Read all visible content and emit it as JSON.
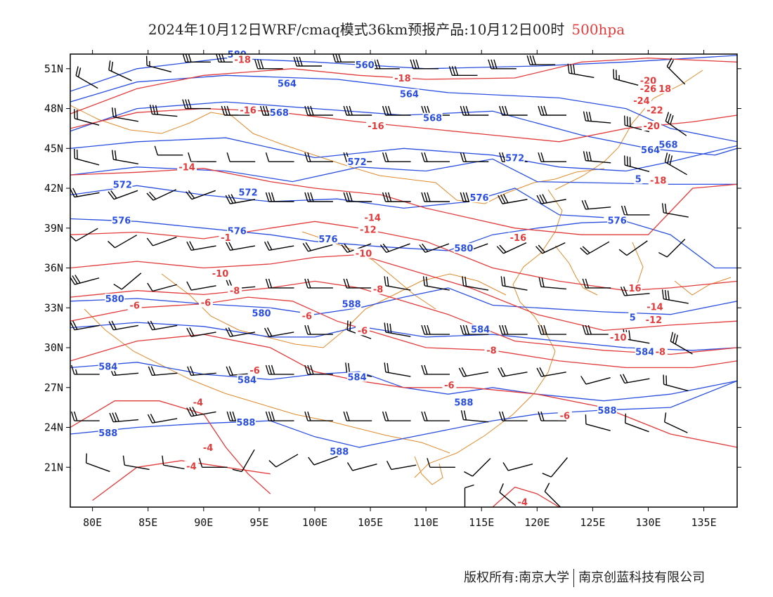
{
  "title": {
    "main": "2024年10月12日WRF/cmaq模式36km预报产品:10月12日00时",
    "level": "500hpa"
  },
  "colors": {
    "height_contour": "#2a4fe0",
    "temp_contour": "#e23b3b",
    "coastline": "#e08a2c",
    "wind_barb": "#000000",
    "frame": "#000000"
  },
  "axes": {
    "lat_labels": [
      "51N",
      "48N",
      "45N",
      "42N",
      "39N",
      "36N",
      "33N",
      "30N",
      "27N",
      "24N",
      "21N"
    ],
    "lon_labels": [
      "80E",
      "85E",
      "90E",
      "95E",
      "100E",
      "105E",
      "110E",
      "115E",
      "120E",
      "125E",
      "130E",
      "135E"
    ],
    "lon_range": [
      78,
      138
    ],
    "lat_range": [
      18,
      52.1
    ]
  },
  "height_labels": [
    {
      "lon": 93.0,
      "lat": 52.0,
      "text": "580"
    },
    {
      "lon": 104.5,
      "lat": 51.2,
      "text": "560"
    },
    {
      "lon": 97.5,
      "lat": 49.8,
      "text": "564"
    },
    {
      "lon": 108.5,
      "lat": 49.0,
      "text": "564"
    },
    {
      "lon": 96.8,
      "lat": 47.6,
      "text": "568"
    },
    {
      "lon": 110.6,
      "lat": 47.2,
      "text": "568"
    },
    {
      "lon": 130.2,
      "lat": 44.8,
      "text": "564"
    },
    {
      "lon": 131.8,
      "lat": 45.2,
      "text": "568"
    },
    {
      "lon": 103.8,
      "lat": 43.9,
      "text": "572"
    },
    {
      "lon": 118.0,
      "lat": 44.2,
      "text": "572"
    },
    {
      "lon": 82.7,
      "lat": 42.2,
      "text": "572"
    },
    {
      "lon": 94.0,
      "lat": 41.6,
      "text": "572"
    },
    {
      "lon": 114.8,
      "lat": 41.2,
      "text": "576"
    },
    {
      "lon": 82.6,
      "lat": 39.5,
      "text": "576"
    },
    {
      "lon": 93.0,
      "lat": 38.7,
      "text": "576"
    },
    {
      "lon": 101.2,
      "lat": 38.1,
      "text": "576"
    },
    {
      "lon": 113.4,
      "lat": 37.4,
      "text": "580"
    },
    {
      "lon": 127.2,
      "lat": 39.5,
      "text": "576"
    },
    {
      "lon": 82.0,
      "lat": 33.6,
      "text": "580"
    },
    {
      "lon": 95.2,
      "lat": 32.5,
      "text": "580"
    },
    {
      "lon": 103.3,
      "lat": 33.2,
      "text": "588"
    },
    {
      "lon": 114.9,
      "lat": 31.3,
      "text": "584"
    },
    {
      "lon": 128.6,
      "lat": 32.2,
      "text": "5"
    },
    {
      "lon": 129.7,
      "lat": 29.6,
      "text": "584"
    },
    {
      "lon": 81.4,
      "lat": 28.5,
      "text": "584"
    },
    {
      "lon": 93.9,
      "lat": 27.5,
      "text": "584"
    },
    {
      "lon": 103.8,
      "lat": 27.7,
      "text": "584"
    },
    {
      "lon": 113.4,
      "lat": 25.8,
      "text": "588"
    },
    {
      "lon": 126.3,
      "lat": 25.2,
      "text": "588"
    },
    {
      "lon": 81.4,
      "lat": 23.5,
      "text": "588"
    },
    {
      "lon": 93.8,
      "lat": 24.3,
      "text": "588"
    },
    {
      "lon": 102.2,
      "lat": 22.1,
      "text": "588"
    },
    {
      "lon": 129.1,
      "lat": 42.6,
      "text": "5"
    }
  ],
  "temp_labels": [
    {
      "lon": 93.5,
      "lat": 51.6,
      "text": "-18"
    },
    {
      "lon": 107.9,
      "lat": 50.2,
      "text": "-18"
    },
    {
      "lon": 94.0,
      "lat": 47.8,
      "text": "-16"
    },
    {
      "lon": 105.5,
      "lat": 46.6,
      "text": "-16"
    },
    {
      "lon": 130.0,
      "lat": 50.0,
      "text": "-20"
    },
    {
      "lon": 130.0,
      "lat": 49.4,
      "text": "-26"
    },
    {
      "lon": 131.5,
      "lat": 49.4,
      "text": "18"
    },
    {
      "lon": 129.4,
      "lat": 48.5,
      "text": "-24"
    },
    {
      "lon": 130.6,
      "lat": 47.8,
      "text": "-22"
    },
    {
      "lon": 130.3,
      "lat": 46.6,
      "text": "-20"
    },
    {
      "lon": 130.9,
      "lat": 42.5,
      "text": "-18"
    },
    {
      "lon": 88.5,
      "lat": 43.5,
      "text": "-14"
    },
    {
      "lon": 105.2,
      "lat": 39.7,
      "text": "-14"
    },
    {
      "lon": 104.8,
      "lat": 38.8,
      "text": "-12"
    },
    {
      "lon": 92.0,
      "lat": 38.2,
      "text": "-1"
    },
    {
      "lon": 104.4,
      "lat": 37.0,
      "text": "-10"
    },
    {
      "lon": 118.3,
      "lat": 38.2,
      "text": "-16"
    },
    {
      "lon": 91.5,
      "lat": 35.5,
      "text": "-10"
    },
    {
      "lon": 128.8,
      "lat": 34.4,
      "text": "16"
    },
    {
      "lon": 130.6,
      "lat": 33.0,
      "text": "-14"
    },
    {
      "lon": 92.8,
      "lat": 34.2,
      "text": "-8"
    },
    {
      "lon": 90.2,
      "lat": 33.3,
      "text": "-6"
    },
    {
      "lon": 105.7,
      "lat": 34.3,
      "text": "-8"
    },
    {
      "lon": 83.8,
      "lat": 33.1,
      "text": "-6"
    },
    {
      "lon": 99.3,
      "lat": 32.3,
      "text": "-6"
    },
    {
      "lon": 104.3,
      "lat": 31.2,
      "text": "-6"
    },
    {
      "lon": 130.5,
      "lat": 32.0,
      "text": "-12"
    },
    {
      "lon": 127.3,
      "lat": 30.7,
      "text": "-10"
    },
    {
      "lon": 131.1,
      "lat": 29.6,
      "text": "-8"
    },
    {
      "lon": 115.9,
      "lat": 29.7,
      "text": "-8"
    },
    {
      "lon": 94.6,
      "lat": 28.2,
      "text": "-6"
    },
    {
      "lon": 112.1,
      "lat": 27.1,
      "text": "-6"
    },
    {
      "lon": 89.5,
      "lat": 25.8,
      "text": "-4"
    },
    {
      "lon": 122.5,
      "lat": 24.8,
      "text": "-6"
    },
    {
      "lon": 90.4,
      "lat": 22.4,
      "text": "-4"
    },
    {
      "lon": 88.9,
      "lat": 21.0,
      "text": "-4"
    },
    {
      "lon": 118.7,
      "lat": 18.3,
      "text": "-4"
    }
  ],
  "wind_barbs": [
    [
      79.5,
      50.0,
      30,
      2,
      0,
      0
    ],
    [
      82.5,
      50.5,
      25,
      2,
      0,
      0
    ],
    [
      86.0,
      51.0,
      15,
      1,
      1,
      0
    ],
    [
      89.5,
      51.5,
      0,
      3,
      0,
      0
    ],
    [
      92.5,
      51.5,
      0,
      3,
      0,
      0
    ],
    [
      96.0,
      51.0,
      0,
      3,
      0,
      0
    ],
    [
      99.5,
      51.2,
      0,
      3,
      0,
      0
    ],
    [
      103.0,
      51.5,
      0,
      3,
      0,
      0
    ],
    [
      106.5,
      51.0,
      0,
      3,
      0,
      0
    ],
    [
      110.0,
      51.0,
      0,
      3,
      0,
      0
    ],
    [
      113.5,
      50.5,
      0,
      3,
      0,
      0
    ],
    [
      117.0,
      51.0,
      0,
      3,
      0,
      0
    ],
    [
      120.5,
      51.3,
      0,
      3,
      0,
      0
    ],
    [
      124.0,
      50.5,
      10,
      3,
      0,
      0
    ],
    [
      128.0,
      50.0,
      15,
      2,
      1,
      0
    ],
    [
      132.5,
      50.5,
      45,
      2,
      0,
      0
    ],
    [
      79.5,
      47.0,
      15,
      2,
      0,
      0
    ],
    [
      83.0,
      47.2,
      10,
      2,
      0,
      0
    ],
    [
      86.5,
      47.5,
      5,
      3,
      0,
      0
    ],
    [
      89.5,
      48.0,
      0,
      3,
      0,
      0
    ],
    [
      93.0,
      47.5,
      0,
      3,
      0,
      0
    ],
    [
      96.5,
      47.5,
      0,
      3,
      0,
      0
    ],
    [
      100.5,
      47.5,
      0,
      3,
      0,
      0
    ],
    [
      104.0,
      47.5,
      0,
      3,
      0,
      0
    ],
    [
      107.5,
      47.5,
      0,
      3,
      0,
      0
    ],
    [
      111.0,
      47.5,
      0,
      3,
      0,
      0
    ],
    [
      114.5,
      47.5,
      0,
      3,
      0,
      0
    ],
    [
      118.0,
      47.5,
      0,
      3,
      0,
      0
    ],
    [
      121.5,
      47.5,
      0,
      3,
      0,
      0
    ],
    [
      125.5,
      47.0,
      5,
      3,
      0,
      0
    ],
    [
      129.0,
      46.5,
      15,
      3,
      0,
      0
    ],
    [
      132.5,
      46.5,
      35,
      3,
      0,
      0
    ],
    [
      79.5,
      44.0,
      15,
      2,
      0,
      0
    ],
    [
      83.0,
      44.0,
      10,
      2,
      0,
      0
    ],
    [
      87.0,
      44.5,
      0,
      1,
      0,
      0
    ],
    [
      90.0,
      44.0,
      0,
      1,
      0,
      0
    ],
    [
      93.5,
      44.0,
      0,
      1,
      0,
      0
    ],
    [
      97.0,
      44.0,
      0,
      1,
      0,
      0
    ],
    [
      100.5,
      44.0,
      0,
      2,
      0,
      0
    ],
    [
      104.0,
      44.0,
      0,
      2,
      0,
      0
    ],
    [
      107.5,
      44.0,
      0,
      2,
      0,
      0
    ],
    [
      111.0,
      44.0,
      0,
      2,
      0,
      0
    ],
    [
      114.5,
      44.0,
      0,
      2,
      0,
      0
    ],
    [
      118.0,
      44.0,
      0,
      2,
      0,
      0
    ],
    [
      121.5,
      44.0,
      0,
      2,
      0,
      0
    ],
    [
      125.5,
      44.0,
      5,
      3,
      0,
      0
    ],
    [
      129.0,
      43.5,
      15,
      3,
      0,
      0
    ],
    [
      132.5,
      43.5,
      30,
      3,
      0,
      0
    ],
    [
      79.5,
      41.5,
      -10,
      2,
      0,
      0
    ],
    [
      83.0,
      41.5,
      -20,
      2,
      0,
      0
    ],
    [
      86.5,
      41.5,
      -25,
      2,
      0,
      0
    ],
    [
      90.0,
      41.5,
      -20,
      2,
      0,
      0
    ],
    [
      93.5,
      41.0,
      -10,
      3,
      0,
      0
    ],
    [
      97.0,
      41.0,
      0,
      3,
      0,
      0
    ],
    [
      100.5,
      41.0,
      0,
      3,
      0,
      0
    ],
    [
      104.0,
      41.0,
      0,
      3,
      0,
      0
    ],
    [
      107.5,
      41.0,
      0,
      3,
      0,
      0
    ],
    [
      111.0,
      41.0,
      0,
      3,
      0,
      0
    ],
    [
      114.5,
      41.0,
      0,
      3,
      0,
      0
    ],
    [
      118.0,
      41.0,
      -10,
      3,
      0,
      0
    ],
    [
      121.5,
      41.0,
      -10,
      3,
      0,
      0
    ],
    [
      125.5,
      40.5,
      -5,
      2,
      0,
      0
    ],
    [
      129.0,
      40.0,
      0,
      2,
      0,
      0
    ],
    [
      132.5,
      40.0,
      10,
      2,
      0,
      0
    ],
    [
      79.5,
      38.5,
      -30,
      1,
      0,
      0
    ],
    [
      83.0,
      38.0,
      -30,
      1,
      0,
      0
    ],
    [
      86.5,
      38.0,
      -20,
      1,
      0,
      0
    ],
    [
      90.0,
      37.5,
      -10,
      2,
      0,
      0
    ],
    [
      93.5,
      37.5,
      -10,
      2,
      0,
      0
    ],
    [
      97.0,
      37.5,
      -10,
      2,
      0,
      0
    ],
    [
      100.5,
      37.5,
      -15,
      2,
      0,
      0
    ],
    [
      104.0,
      37.5,
      -20,
      2,
      0,
      0
    ],
    [
      107.5,
      37.5,
      -20,
      2,
      0,
      0
    ],
    [
      111.0,
      37.5,
      -20,
      2,
      0,
      0
    ],
    [
      114.5,
      37.5,
      -20,
      2,
      0,
      0
    ],
    [
      118.0,
      37.5,
      -25,
      2,
      0,
      0
    ],
    [
      121.5,
      37.5,
      -25,
      2,
      0,
      0
    ],
    [
      125.5,
      37.5,
      -30,
      2,
      0,
      0
    ],
    [
      129.0,
      37.5,
      -35,
      1,
      0,
      0
    ],
    [
      132.5,
      37.5,
      -45,
      1,
      0,
      0
    ],
    [
      79.5,
      35.0,
      -15,
      3,
      0,
      0
    ],
    [
      83.5,
      35.0,
      -40,
      1,
      0,
      0
    ],
    [
      86.5,
      34.5,
      -15,
      1,
      0,
      0
    ],
    [
      90.0,
      34.5,
      -10,
      1,
      0,
      0
    ],
    [
      93.5,
      34.5,
      -5,
      2,
      0,
      0
    ],
    [
      97.0,
      34.5,
      0,
      2,
      0,
      0
    ],
    [
      100.5,
      34.5,
      0,
      2,
      0,
      0
    ],
    [
      104.0,
      34.5,
      0,
      2,
      0,
      0
    ],
    [
      107.5,
      34.5,
      10,
      2,
      0,
      0
    ],
    [
      111.0,
      34.5,
      10,
      2,
      0,
      0
    ],
    [
      114.5,
      34.5,
      10,
      2,
      0,
      0
    ],
    [
      118.0,
      34.5,
      10,
      2,
      0,
      0
    ],
    [
      121.5,
      34.5,
      5,
      2,
      0,
      0
    ],
    [
      125.5,
      34.5,
      0,
      2,
      0,
      0
    ],
    [
      129.0,
      34.0,
      -5,
      2,
      0,
      0
    ],
    [
      132.5,
      33.5,
      10,
      3,
      0,
      0
    ],
    [
      79.5,
      31.5,
      -10,
      2,
      0,
      0
    ],
    [
      83.0,
      31.5,
      -10,
      2,
      0,
      0
    ],
    [
      86.5,
      31.5,
      -10,
      2,
      0,
      0
    ],
    [
      90.0,
      31.0,
      -10,
      2,
      0,
      0
    ],
    [
      93.5,
      31.0,
      -10,
      2,
      0,
      0
    ],
    [
      97.0,
      31.0,
      -10,
      2,
      0,
      0
    ],
    [
      100.5,
      31.0,
      0,
      2,
      0,
      0
    ],
    [
      104.0,
      31.0,
      20,
      2,
      0,
      0
    ],
    [
      107.5,
      31.0,
      10,
      3,
      0,
      0
    ],
    [
      111.0,
      31.0,
      0,
      3,
      0,
      0
    ],
    [
      114.5,
      31.0,
      0,
      3,
      0,
      0
    ],
    [
      118.0,
      31.0,
      0,
      3,
      0,
      0
    ],
    [
      121.5,
      31.0,
      0,
      3,
      0,
      0
    ],
    [
      125.5,
      31.0,
      0,
      3,
      0,
      0
    ],
    [
      129.0,
      30.5,
      10,
      3,
      0,
      0
    ],
    [
      133.0,
      30.0,
      30,
      3,
      0,
      0
    ],
    [
      79.5,
      28.0,
      0,
      1,
      1,
      0
    ],
    [
      83.0,
      28.0,
      -5,
      2,
      0,
      0
    ],
    [
      86.5,
      28.0,
      -5,
      2,
      0,
      0
    ],
    [
      90.0,
      28.0,
      -5,
      2,
      0,
      0
    ],
    [
      93.5,
      28.0,
      -5,
      2,
      0,
      0
    ],
    [
      97.0,
      28.0,
      0,
      3,
      0,
      0
    ],
    [
      100.5,
      28.0,
      0,
      3,
      0,
      0
    ],
    [
      104.0,
      28.0,
      10,
      2,
      0,
      0
    ],
    [
      107.5,
      28.0,
      10,
      2,
      0,
      0
    ],
    [
      111.0,
      28.0,
      0,
      2,
      0,
      0
    ],
    [
      114.5,
      28.0,
      -10,
      2,
      0,
      0
    ],
    [
      118.0,
      28.0,
      -10,
      2,
      0,
      0
    ],
    [
      121.5,
      28.0,
      -10,
      2,
      0,
      0
    ],
    [
      125.5,
      27.5,
      -15,
      1,
      0,
      0
    ],
    [
      129.0,
      27.5,
      -10,
      2,
      0,
      0
    ],
    [
      132.5,
      27.0,
      15,
      2,
      0,
      0
    ],
    [
      79.5,
      24.5,
      0,
      2,
      0,
      0
    ],
    [
      83.0,
      24.5,
      -5,
      3,
      0,
      0
    ],
    [
      86.5,
      24.5,
      -10,
      2,
      0,
      0
    ],
    [
      90.0,
      25.0,
      -10,
      3,
      0,
      0
    ],
    [
      93.5,
      24.5,
      0,
      3,
      0,
      0
    ],
    [
      97.0,
      24.5,
      0,
      3,
      0,
      0
    ],
    [
      100.5,
      24.5,
      0,
      2,
      0,
      0
    ],
    [
      104.0,
      24.5,
      0,
      2,
      0,
      0
    ],
    [
      107.5,
      24.5,
      0,
      2,
      0,
      0
    ],
    [
      111.0,
      24.5,
      0,
      2,
      0,
      0
    ],
    [
      114.5,
      24.5,
      5,
      2,
      0,
      0
    ],
    [
      118.0,
      24.5,
      0,
      2,
      0,
      0
    ],
    [
      121.5,
      24.5,
      0,
      2,
      0,
      0
    ],
    [
      125.5,
      24.0,
      15,
      1,
      0,
      0
    ],
    [
      129.0,
      24.0,
      20,
      1,
      0,
      0
    ],
    [
      132.5,
      24.0,
      25,
      1,
      0,
      0
    ],
    [
      80.5,
      21.0,
      20,
      1,
      0,
      0
    ],
    [
      84.0,
      21.0,
      10,
      1,
      0,
      0
    ],
    [
      87.5,
      21.0,
      10,
      1,
      0,
      0
    ],
    [
      91.0,
      21.0,
      0,
      1,
      0,
      0
    ],
    [
      94.0,
      21.5,
      -60,
      1,
      0,
      0
    ],
    [
      97.5,
      21.5,
      -30,
      1,
      0,
      0
    ],
    [
      101.0,
      21.5,
      -20,
      1,
      0,
      0
    ],
    [
      104.5,
      21.0,
      -15,
      1,
      0,
      0
    ],
    [
      108.0,
      21.0,
      -10,
      1,
      0,
      0
    ],
    [
      111.5,
      21.0,
      0,
      1,
      0,
      0
    ],
    [
      115.0,
      21.0,
      -45,
      1,
      0,
      0
    ],
    [
      118.5,
      21.0,
      -15,
      1,
      0,
      0
    ],
    [
      122.0,
      21.0,
      -50,
      1,
      0,
      0
    ],
    [
      113.5,
      18.5,
      90,
      1,
      0,
      0
    ],
    [
      117.5,
      18.5,
      40,
      1,
      0,
      0
    ],
    [
      121.5,
      18.5,
      45,
      1,
      0,
      0
    ]
  ],
  "footer": {
    "left": "版权所有:南京大学",
    "right": "南京创蓝科技有限公司"
  }
}
